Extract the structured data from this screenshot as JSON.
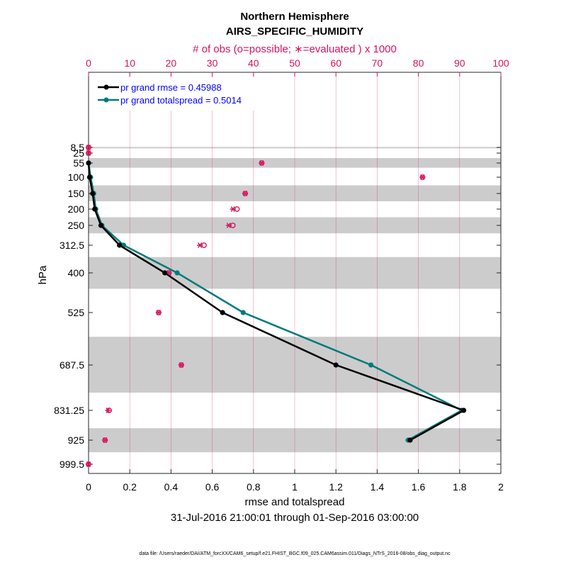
{
  "colors": {
    "rmse": "#000000",
    "spread": "#007a7a",
    "obs": "#d6135d",
    "band": "#cccccc",
    "grid": "#d6135d"
  },
  "chart_data": {
    "type": "line",
    "title": "Northern Hemisphere",
    "subtitle": "AIRS_SPECIFIC_HUMIDITY",
    "top_axis_label": "# of obs (o=possible; ∗=evaluated ) x 1000",
    "xlabel": "rmse and totalspread",
    "ylabel": "hPa",
    "date_range": "31-Jul-2016 21:00:01 through 01-Sep-2016 03:00:00",
    "footer": "data file: /Users/raeder/DAI/ATM_forcXX/CAM6_setup/f.e21.FHIST_BGC.f09_025.CAM6assim.011/Diags_NTrS_2016-08/obs_diag_output.nc",
    "xlim": [
      0,
      2
    ],
    "xticks": [
      "0",
      "0.2",
      "0.4",
      "0.6",
      "0.8",
      "1",
      "1.2",
      "1.4",
      "1.6",
      "1.8",
      "2"
    ],
    "top_xlim": [
      0,
      100
    ],
    "top_ticks": [
      "0",
      "10",
      "20",
      "30",
      "40",
      "50",
      "60",
      "70",
      "80",
      "90",
      "100"
    ],
    "levels": [
      "8.5",
      "25",
      "55",
      "100",
      "150",
      "200",
      "250",
      "312.5",
      "400",
      "525",
      "687.5",
      "831.25",
      "925",
      "999.5"
    ],
    "series": [
      {
        "name": "pr grand rmse = 0.45988",
        "color": "#000000",
        "points": [
          {
            "level": 55,
            "value": 0.0
          },
          {
            "level": 100,
            "value": 0.005
          },
          {
            "level": 150,
            "value": 0.02
          },
          {
            "level": 200,
            "value": 0.03
          },
          {
            "level": 250,
            "value": 0.06
          },
          {
            "level": 312.5,
            "value": 0.15
          },
          {
            "level": 400,
            "value": 0.37
          },
          {
            "level": 525,
            "value": 0.65
          },
          {
            "level": 687.5,
            "value": 1.2
          },
          {
            "level": 831.25,
            "value": 1.82
          },
          {
            "level": 925,
            "value": 1.56
          }
        ]
      },
      {
        "name": "pr grand totalspread = 0.5014",
        "color": "#007a7a",
        "points": [
          {
            "level": 55,
            "value": 0.0
          },
          {
            "level": 100,
            "value": 0.01
          },
          {
            "level": 150,
            "value": 0.025
          },
          {
            "level": 200,
            "value": 0.035
          },
          {
            "level": 250,
            "value": 0.065
          },
          {
            "level": 312.5,
            "value": 0.17
          },
          {
            "level": 400,
            "value": 0.43
          },
          {
            "level": 525,
            "value": 0.75
          },
          {
            "level": 687.5,
            "value": 1.37
          },
          {
            "level": 831.25,
            "value": 1.81
          },
          {
            "level": 925,
            "value": 1.55
          }
        ]
      }
    ],
    "obs_counts": [
      {
        "level": 8.5,
        "possible": 0.0,
        "evaluated": 0.0
      },
      {
        "level": 25,
        "possible": 0.0,
        "evaluated": 0.0
      },
      {
        "level": 55,
        "possible": 42,
        "evaluated": 42
      },
      {
        "level": 100,
        "possible": 81,
        "evaluated": 81
      },
      {
        "level": 150,
        "possible": 38,
        "evaluated": 38
      },
      {
        "level": 200,
        "possible": 36,
        "evaluated": 35
      },
      {
        "level": 250,
        "possible": 35,
        "evaluated": 34
      },
      {
        "level": 312.5,
        "possible": 28,
        "evaluated": 27
      },
      {
        "level": 400,
        "possible": 19.5,
        "evaluated": 19.5
      },
      {
        "level": 525,
        "possible": 17,
        "evaluated": 17
      },
      {
        "level": 687.5,
        "possible": 22.5,
        "evaluated": 22.5
      },
      {
        "level": 831.25,
        "possible": 5,
        "evaluated": 4.7
      },
      {
        "level": 925,
        "possible": 4,
        "evaluated": 4
      },
      {
        "level": 999.5,
        "possible": 0,
        "evaluated": 0
      }
    ],
    "bands_hpa": [
      [
        7,
        10
      ],
      [
        40,
        70
      ],
      [
        125,
        175
      ],
      [
        225,
        275
      ],
      [
        350,
        450
      ],
      [
        600,
        775
      ],
      [
        887.5,
        962.5
      ]
    ],
    "grid": true,
    "legend_position": "top-left"
  }
}
